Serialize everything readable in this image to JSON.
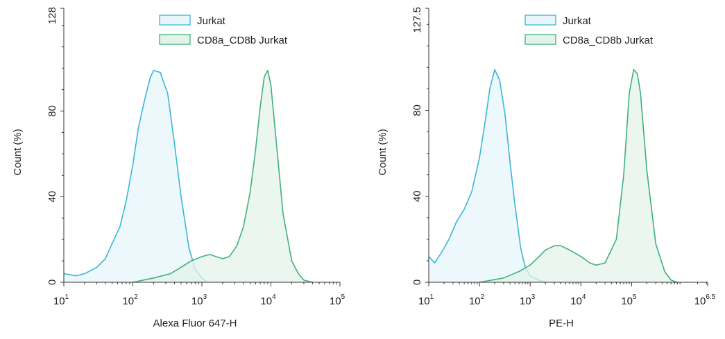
{
  "chart_data": [
    {
      "type": "area",
      "xlabel": "Alexa Fluor 647-H",
      "ylabel": "Count (%)",
      "x_scale": "log10",
      "xlim": [
        10,
        100000
      ],
      "ylim": [
        0,
        128
      ],
      "yticks": [
        {
          "value": 0,
          "label": "0"
        },
        {
          "value": 40,
          "label": "40"
        },
        {
          "value": 80,
          "label": "80"
        },
        {
          "value": 128,
          "label": "128"
        }
      ],
      "xticks": [
        {
          "value": 10,
          "base": "10",
          "exp": "1"
        },
        {
          "value": 100,
          "base": "10",
          "exp": "2"
        },
        {
          "value": 1000,
          "base": "10",
          "exp": "3"
        },
        {
          "value": 10000,
          "base": "10",
          "exp": "4"
        },
        {
          "value": 100000,
          "base": "10",
          "exp": "5"
        }
      ],
      "legend_position": "top-right",
      "series": [
        {
          "name": "Jurkat",
          "stroke": "#3bb6d6",
          "fill": "#e6f6fb",
          "x": [
            10,
            15,
            20,
            30,
            40,
            50,
            65,
            80,
            100,
            120,
            150,
            180,
            200,
            250,
            320,
            400,
            500,
            650,
            800,
            1000,
            1200
          ],
          "y": [
            4,
            3,
            4,
            7,
            11,
            18,
            26,
            38,
            55,
            72,
            86,
            96,
            99,
            98,
            88,
            65,
            40,
            16,
            6,
            2,
            0
          ]
        },
        {
          "name": "CD8a_CD8b Jurkat",
          "stroke": "#3fb17a",
          "fill": "#e3f3ea",
          "x": [
            100,
            200,
            350,
            500,
            700,
            1000,
            1300,
            1600,
            2000,
            2500,
            3200,
            4000,
            5000,
            6000,
            7000,
            8000,
            9000,
            10000,
            12000,
            15000,
            20000,
            25000,
            30000,
            40000
          ],
          "y": [
            0,
            2,
            4,
            7,
            10,
            12,
            13,
            12,
            11,
            12,
            17,
            26,
            42,
            62,
            82,
            96,
            99,
            92,
            65,
            32,
            10,
            4,
            1,
            0
          ]
        }
      ]
    },
    {
      "type": "area",
      "xlabel": "PE-H",
      "ylabel": "Count (%)",
      "x_scale": "log10",
      "xlim": [
        10,
        3162278
      ],
      "ylim": [
        0,
        127.5
      ],
      "yticks": [
        {
          "value": 0,
          "label": "0"
        },
        {
          "value": 40,
          "label": "40"
        },
        {
          "value": 80,
          "label": "80"
        },
        {
          "value": 127.5,
          "label": "127.5"
        }
      ],
      "xticks": [
        {
          "value": 10,
          "base": "10",
          "exp": "1"
        },
        {
          "value": 100,
          "base": "10",
          "exp": "2"
        },
        {
          "value": 1000,
          "base": "10",
          "exp": "3"
        },
        {
          "value": 10000,
          "base": "10",
          "exp": "4"
        },
        {
          "value": 100000,
          "base": "10",
          "exp": "5"
        },
        {
          "value": 3162278,
          "base": "10",
          "exp": "6.5"
        }
      ],
      "legend_position": "top-right",
      "series": [
        {
          "name": "Jurkat",
          "stroke": "#3bb6d6",
          "fill": "#e6f6fb",
          "x": [
            10,
            13,
            18,
            25,
            35,
            50,
            70,
            100,
            130,
            160,
            200,
            250,
            320,
            400,
            500,
            650,
            800,
            1000,
            1500,
            2000
          ],
          "y": [
            12,
            9,
            14,
            20,
            28,
            34,
            42,
            58,
            75,
            90,
            99,
            94,
            78,
            56,
            36,
            16,
            7,
            3,
            1,
            0
          ]
        },
        {
          "name": "CD8a_CD8b Jurkat",
          "stroke": "#3fb17a",
          "fill": "#e3f3ea",
          "x": [
            100,
            300,
            600,
            1000,
            1500,
            2000,
            3000,
            4000,
            6000,
            10000,
            15000,
            20000,
            30000,
            50000,
            70000,
            90000,
            110000,
            130000,
            150000,
            200000,
            300000,
            450000,
            600000,
            800000
          ],
          "y": [
            0,
            2,
            5,
            8,
            12,
            15,
            17,
            17,
            15,
            12,
            9,
            8,
            9,
            20,
            50,
            88,
            99,
            97,
            88,
            52,
            18,
            5,
            1,
            0
          ]
        }
      ]
    }
  ]
}
